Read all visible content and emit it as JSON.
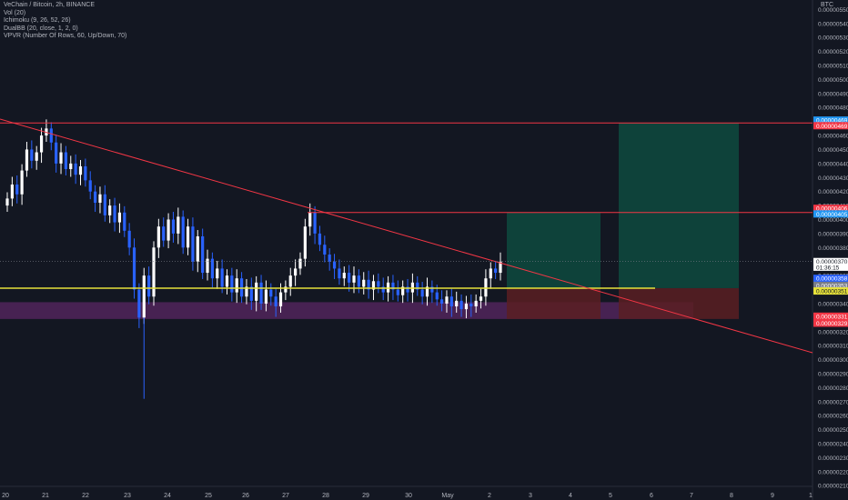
{
  "legend": {
    "title": "VeChain / Bitcoin, 2h, BINANCE",
    "indicators": [
      "Vol (20)",
      "Ichimoku (9, 26, 52, 26)",
      "DualBB (20, close, 1, 2, 0)",
      "VPVR (Number Of Rows, 60, Up/Down, 70)"
    ]
  },
  "currency": "BTC",
  "colors": {
    "background": "#131722",
    "up": "#ffffff",
    "down": "#2962ff",
    "resistance": "#f23645",
    "support": "#e6e13a",
    "zone": "#6b2a73",
    "target": "#0e4a3e",
    "stop": "#5a1f22"
  },
  "chart_data": {
    "type": "candlestick",
    "x_ticks": [
      "20",
      "21",
      "22",
      "23",
      "24",
      "25",
      "26",
      "27",
      "28",
      "29",
      "30",
      "May",
      "2",
      "3",
      "4",
      "5",
      "6",
      "7",
      "8",
      "9",
      "1"
    ],
    "y_ticks": [
      "0.00000550",
      "0.00000540",
      "0.00000530",
      "0.00000520",
      "0.00000510",
      "0.00000500",
      "0.00000490",
      "0.00000480",
      "0.00000470",
      "0.00000460",
      "0.00000450",
      "0.00000440",
      "0.00000430",
      "0.00000420",
      "0.00000410",
      "0.00000400",
      "0.00000390",
      "0.00000380",
      "0.00000370",
      "0.00000360",
      "0.00000350",
      "0.00000340",
      "0.00000330",
      "0.00000320",
      "0.00000310",
      "0.00000300",
      "0.00000290",
      "0.00000280",
      "0.00000270",
      "0.00000260",
      "0.00000250",
      "0.00000240",
      "0.00000230",
      "0.00000220",
      "0.00000210"
    ],
    "ylim": [
      2.095e-06,
      5.535e-06
    ],
    "close_series": [
      4.15e-06,
      4.25e-06,
      4.18e-06,
      4.35e-06,
      4.5e-06,
      4.42e-06,
      4.48e-06,
      4.6e-06,
      4.65e-06,
      4.55e-06,
      4.4e-06,
      4.48e-06,
      4.36e-06,
      4.4e-06,
      4.32e-06,
      4.38e-06,
      4.28e-06,
      4.2e-06,
      4.12e-06,
      4.18e-06,
      4.03e-06,
      4.1e-06,
      3.98e-06,
      4.05e-06,
      3.92e-06,
      3.8e-06,
      3.5e-06,
      3.3e-06,
      3.6e-06,
      3.45e-06,
      3.8e-06,
      3.95e-06,
      3.85e-06,
      4e-06,
      3.9e-06,
      4.02e-06,
      3.8e-06,
      3.95e-06,
      3.7e-06,
      3.88e-06,
      3.62e-06,
      3.72e-06,
      3.58e-06,
      3.65e-06,
      3.52e-06,
      3.6e-06,
      3.48e-06,
      3.58e-06,
      3.45e-06,
      3.52e-06,
      3.42e-06,
      3.55e-06,
      3.4e-06,
      3.5e-06,
      3.45e-06,
      3.38e-06,
      3.48e-06,
      3.52e-06,
      3.6e-06,
      3.65e-06,
      3.72e-06,
      3.95e-06,
      4.05e-06,
      3.9e-06,
      3.82e-06,
      3.75e-06,
      3.7e-06,
      3.65e-06,
      3.58e-06,
      3.62e-06,
      3.55e-06,
      3.6e-06,
      3.52e-06,
      3.57e-06,
      3.5e-06,
      3.56e-06,
      3.52e-06,
      3.48e-06,
      3.55e-06,
      3.5e-06,
      3.46e-06,
      3.52e-06,
      3.48e-06,
      3.55e-06,
      3.5e-06,
      3.45e-06,
      3.52e-06,
      3.48e-06,
      3.43e-06,
      3.4e-06,
      3.45e-06,
      3.38e-06,
      3.42e-06,
      3.36e-06,
      3.4e-06,
      3.38e-06,
      3.42e-06,
      3.45e-06,
      3.58e-06,
      3.65e-06,
      3.62e-06,
      3.7e-06
    ],
    "levels": [
      {
        "name": "Upper resistance",
        "price": 4.69e-06,
        "label": "0.00000469",
        "color": "#f23645"
      },
      {
        "name": "Resistance",
        "price": 4.05e-06,
        "label": "0.00000405",
        "color": "#f23645"
      },
      {
        "name": "Support",
        "price": 3.51e-06,
        "label": "0.00000351",
        "color": "#e6e13a"
      }
    ],
    "zone": {
      "from": 3.29e-06,
      "to": 3.41e-06
    },
    "price_labels": [
      {
        "text": "0.00000469",
        "price": 4.71e-06,
        "bg": "#2196f3"
      },
      {
        "text": "0.00000469",
        "price": 4.67e-06,
        "bg": "#f23645"
      },
      {
        "text": "0.00000406",
        "price": 4.08e-06,
        "bg": "#f23645"
      },
      {
        "text": "0.00000405",
        "price": 4.04e-06,
        "bg": "#2196f3"
      },
      {
        "text": "0.00000370",
        "price": 3.7e-06,
        "bg": "#ffffff",
        "fg": "#131722"
      },
      {
        "text": "01:36:15",
        "price": 3.66e-06,
        "bg": "#ffffff",
        "fg": "#131722"
      },
      {
        "text": "0.00000358",
        "price": 3.58e-06,
        "bg": "#2962ff"
      },
      {
        "text": "0.00000353",
        "price": 3.53e-06,
        "bg": "#787b86"
      },
      {
        "text": "0.00000351",
        "price": 3.49e-06,
        "bg": "#e6e13a",
        "fg": "#131722"
      },
      {
        "text": "0.00000331",
        "price": 3.31e-06,
        "bg": "#f23645"
      },
      {
        "text": "0.00000329",
        "price": 3.26e-06,
        "bg": "#f23645"
      }
    ]
  }
}
